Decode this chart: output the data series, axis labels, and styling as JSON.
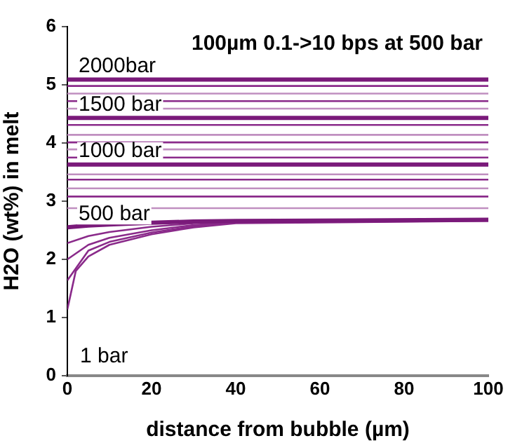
{
  "chart_data": {
    "type": "line",
    "title": "100µm 0.1->10 bps at 500 bar",
    "xlabel": "distance from bubble (µm)",
    "ylabel": "H2O (wt%) in melt",
    "xlim": [
      0,
      100
    ],
    "xticks": [
      0,
      20,
      40,
      60,
      80,
      100
    ],
    "ylim": [
      0,
      6
    ],
    "yticks": [
      0,
      1,
      2,
      3,
      4,
      5,
      6
    ],
    "grid": false,
    "legend": false,
    "marker": "none",
    "line_style": "solid",
    "annotations": [
      "1 bar"
    ],
    "series": [
      {
        "name": "2000bar",
        "color": "#7a1a7a",
        "x": [
          0,
          100
        ],
        "values": [
          5.09,
          5.09
        ]
      },
      {
        "color": "#8a2a8a",
        "x": [
          0,
          100
        ],
        "values": [
          4.98,
          4.98
        ]
      },
      {
        "color": "#c08fc0",
        "x": [
          0,
          100
        ],
        "values": [
          4.85,
          4.85
        ]
      },
      {
        "color": "#8a2a8a",
        "x": [
          0,
          100
        ],
        "values": [
          4.72,
          4.72
        ]
      },
      {
        "color": "#c08fc0",
        "x": [
          0,
          100
        ],
        "values": [
          4.59,
          4.59
        ]
      },
      {
        "name": "1500 bar",
        "color": "#7a1a7a",
        "x": [
          0,
          100
        ],
        "values": [
          4.43,
          4.43
        ]
      },
      {
        "color": "#8a2a8a",
        "x": [
          0,
          100
        ],
        "values": [
          4.31,
          4.31
        ]
      },
      {
        "color": "#c08fc0",
        "x": [
          0,
          100
        ],
        "values": [
          4.14,
          4.14
        ]
      },
      {
        "color": "#8a2a8a",
        "x": [
          0,
          100
        ],
        "values": [
          4.01,
          4.01
        ]
      },
      {
        "color": "#c08fc0",
        "x": [
          0,
          100
        ],
        "values": [
          3.89,
          3.89
        ]
      },
      {
        "color": "#8a2a8a",
        "x": [
          0,
          100
        ],
        "values": [
          3.75,
          3.75
        ]
      },
      {
        "name": "1000 bar",
        "color": "#7a1a7a",
        "x": [
          0,
          100
        ],
        "values": [
          3.63,
          3.63
        ]
      },
      {
        "color": "#c08fc0",
        "x": [
          0,
          100
        ],
        "values": [
          3.46,
          3.46
        ]
      },
      {
        "color": "#8a2a8a",
        "x": [
          0,
          100
        ],
        "values": [
          3.37,
          3.37
        ]
      },
      {
        "color": "#c08fc0",
        "x": [
          0,
          100
        ],
        "values": [
          3.22,
          3.22
        ]
      },
      {
        "color": "#8a2a8a",
        "x": [
          0,
          100
        ],
        "values": [
          3.08,
          3.08
        ]
      },
      {
        "color": "#c08fc0",
        "x": [
          0,
          100
        ],
        "values": [
          2.88,
          2.88
        ]
      },
      {
        "name": "500 bar",
        "color": "#7a1a7a",
        "x": [
          0,
          5,
          10,
          20,
          30,
          40,
          100
        ],
        "values": [
          2.55,
          2.58,
          2.6,
          2.63,
          2.65,
          2.66,
          2.68
        ]
      },
      {
        "color": "#8a2a8a",
        "x": [
          0,
          5,
          10,
          20,
          30,
          40,
          100
        ],
        "values": [
          2.28,
          2.4,
          2.47,
          2.56,
          2.62,
          2.65,
          2.67
        ]
      },
      {
        "color": "#8a2a8a",
        "x": [
          0,
          5,
          10,
          20,
          30,
          40,
          100
        ],
        "values": [
          2.0,
          2.25,
          2.37,
          2.5,
          2.59,
          2.64,
          2.67
        ]
      },
      {
        "color": "#8a2a8a",
        "x": [
          0,
          5,
          10,
          20,
          30,
          40,
          100
        ],
        "values": [
          1.64,
          2.15,
          2.3,
          2.46,
          2.57,
          2.63,
          2.67
        ]
      },
      {
        "color": "#8a2a8a",
        "x": [
          0,
          2,
          5,
          10,
          20,
          30,
          40,
          100
        ],
        "values": [
          1.14,
          1.8,
          2.05,
          2.25,
          2.43,
          2.55,
          2.62,
          2.66
        ]
      }
    ]
  }
}
